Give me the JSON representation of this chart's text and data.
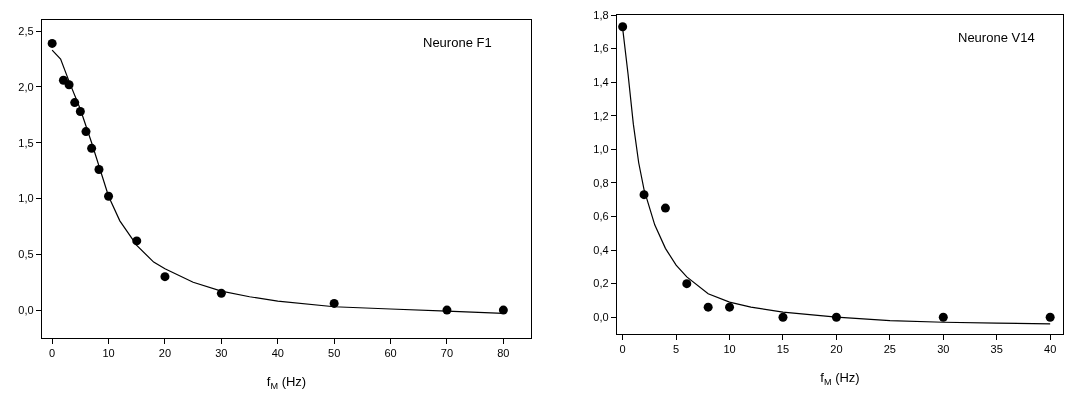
{
  "chart_data": [
    {
      "type": "scatter",
      "xlabel": "f$_{M}$ (Hz)",
      "annotations": [
        "Neurone F1"
      ],
      "marker": "circle",
      "xlim": [
        -1.8,
        84.9
      ],
      "xticks": [
        0,
        10,
        20,
        30,
        40,
        50,
        60,
        70,
        80
      ],
      "ylim": [
        -0.25,
        2.6
      ],
      "yticks": [
        {
          "value": 0,
          "label": "0,0"
        },
        {
          "value": 0.5,
          "label": "0,5"
        },
        {
          "value": 1,
          "label": "1,0"
        },
        {
          "value": 1.5,
          "label": "1,5"
        },
        {
          "value": 2,
          "label": "2,0"
        },
        {
          "value": 2.5,
          "label": "2,5"
        }
      ],
      "series": [
        {
          "color": "#000000",
          "x": [
            0,
            2,
            3,
            4,
            5,
            6,
            7,
            8.3,
            10,
            15,
            20,
            30,
            50,
            70,
            80
          ],
          "values": [
            2.39,
            2.06,
            2.02,
            1.86,
            1.78,
            1.6,
            1.45,
            1.26,
            1.02,
            0.62,
            0.3,
            0.15,
            0.06,
            0,
            0
          ]
        },
        {
          "type": "line",
          "color": "#000000",
          "marker": "none",
          "line_style": "solid",
          "x": [
            0,
            1.5,
            3,
            5,
            7,
            10,
            12,
            15,
            18,
            20,
            25,
            30,
            35,
            40,
            50,
            60,
            70,
            80
          ],
          "values": [
            2.33,
            2.25,
            2.05,
            1.8,
            1.5,
            1.02,
            0.8,
            0.58,
            0.43,
            0.37,
            0.25,
            0.17,
            0.12,
            0.08,
            0.03,
            0.01,
            -0.01,
            -0.03
          ]
        }
      ]
    },
    {
      "type": "scatter",
      "xlabel": "f$_{M}$ (Hz)",
      "annotations": [
        "Neurone V14"
      ],
      "marker": "circle",
      "xlim": [
        -0.53,
        41.2
      ],
      "xticks": [
        0,
        5,
        10,
        15,
        20,
        25,
        30,
        35,
        40
      ],
      "ylim": [
        -0.1,
        1.8
      ],
      "yticks": [
        {
          "value": 0,
          "label": "0,0"
        },
        {
          "value": 0.2,
          "label": "0,2"
        },
        {
          "value": 0.4,
          "label": "0,4"
        },
        {
          "value": 0.6,
          "label": "0,6"
        },
        {
          "value": 0.8,
          "label": "0,8"
        },
        {
          "value": 1,
          "label": "1,0"
        },
        {
          "value": 1.2,
          "label": "1,2"
        },
        {
          "value": 1.4,
          "label": "1,4"
        },
        {
          "value": 1.6,
          "label": "1,6"
        },
        {
          "value": 1.8,
          "label": "1,8"
        }
      ],
      "series": [
        {
          "color": "#000000",
          "x": [
            0,
            2,
            4,
            6,
            8,
            10,
            15,
            20,
            30,
            40
          ],
          "values": [
            1.73,
            0.73,
            0.65,
            0.2,
            0.06,
            0.06,
            0,
            0,
            0,
            0
          ]
        },
        {
          "type": "line",
          "color": "#000000",
          "marker": "none",
          "line_style": "solid",
          "x": [
            0,
            0.5,
            1,
            1.5,
            2,
            3,
            4,
            5,
            6,
            8,
            10,
            12,
            15,
            20,
            25,
            30,
            35,
            40
          ],
          "values": [
            1.72,
            1.45,
            1.15,
            0.92,
            0.76,
            0.55,
            0.41,
            0.31,
            0.24,
            0.14,
            0.09,
            0.06,
            0.03,
            0,
            -0.02,
            -0.03,
            -0.035,
            -0.04
          ]
        }
      ]
    }
  ]
}
